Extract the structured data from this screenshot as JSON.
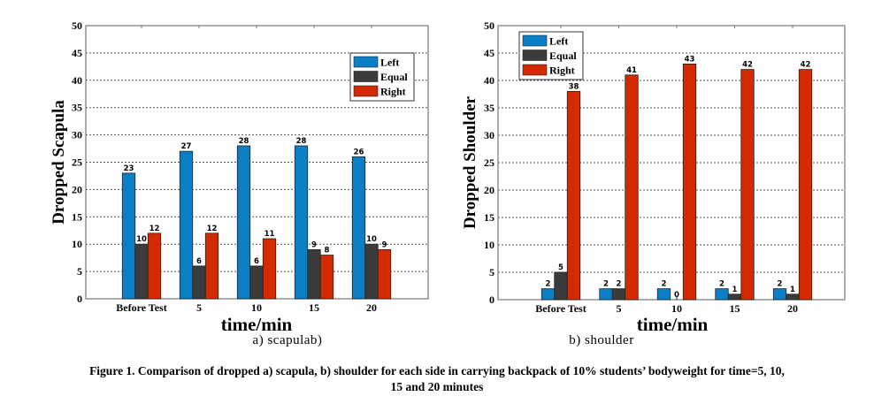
{
  "figure_caption": {
    "line1": "Figure 1. Comparison of dropped a) scapula, b) shoulder for each side in carrying backpack of 10% students’ bodyweight for time=5, 10,",
    "line2": "15 and 20 minutes"
  },
  "colors": {
    "Left": "#0a7fc6",
    "Equal": "#3b3b3b",
    "Right": "#d42a00"
  },
  "chart_data": [
    {
      "type": "bar",
      "title": "",
      "subtitle": "a) scapulab)",
      "xlabel": "time/min",
      "ylabel": "Dropped Scapula",
      "categories": [
        "Before Test",
        "5",
        "10",
        "15",
        "20"
      ],
      "series": [
        {
          "name": "Left",
          "values": [
            23,
            27,
            28,
            28,
            26
          ]
        },
        {
          "name": "Equal",
          "values": [
            10,
            6,
            6,
            9,
            10
          ]
        },
        {
          "name": "Right",
          "values": [
            12,
            12,
            11,
            8,
            9
          ]
        }
      ],
      "ylim": [
        0,
        50
      ],
      "yticks": [
        0,
        5,
        10,
        15,
        20,
        25,
        30,
        35,
        40,
        45,
        50
      ],
      "grid": true,
      "legend": "top-right"
    },
    {
      "type": "bar",
      "title": "",
      "subtitle": "b) shoulder",
      "xlabel": "time/min",
      "ylabel": "Dropped Shoulder",
      "categories": [
        "Before Test",
        "5",
        "10",
        "15",
        "20"
      ],
      "series": [
        {
          "name": "Left",
          "values": [
            2,
            2,
            2,
            2,
            2
          ]
        },
        {
          "name": "Equal",
          "values": [
            5,
            2,
            0,
            1,
            1
          ]
        },
        {
          "name": "Right",
          "values": [
            38,
            41,
            43,
            42,
            42
          ]
        }
      ],
      "ylim": [
        0,
        50
      ],
      "yticks": [
        0,
        5,
        10,
        15,
        20,
        25,
        30,
        35,
        40,
        45,
        50
      ],
      "grid": true,
      "legend": "top-left"
    }
  ]
}
